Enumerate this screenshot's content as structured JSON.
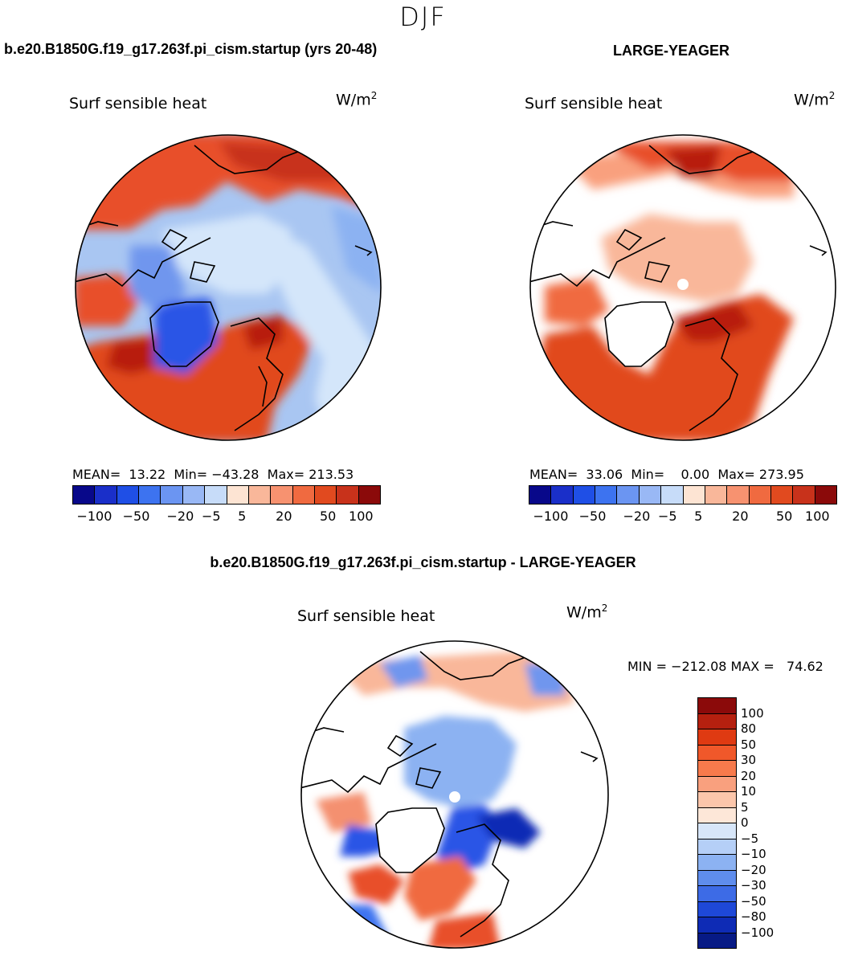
{
  "season": "DJF",
  "panels": {
    "model": {
      "case_title": "b.e20.B1850G.f19_g17.263f.pi_cism.startup (yrs 20-48)",
      "variable": "Surf sensible heat",
      "units_base": "W/m",
      "units_exp": "2",
      "stats": "MEAN=  13.22  Min= −43.28  Max= 213.53"
    },
    "obs": {
      "case_title": "LARGE-YEAGER",
      "variable": "Surf sensible heat",
      "units_base": "W/m",
      "units_exp": "2",
      "stats": "MEAN=  33.06  Min=    0.00  Max= 273.95"
    },
    "diff": {
      "case_title": "b.e20.B1850G.f19_g17.263f.pi_cism.startup - LARGE-YEAGER",
      "variable": "Surf sensible heat",
      "units_base": "W/m",
      "units_exp": "2",
      "stats": "MIN = −212.08 MAX =   74.62"
    }
  },
  "colorbar_main": {
    "colors": [
      "#08088a",
      "#1a2fc9",
      "#1f4fe6",
      "#3d73f0",
      "#6b95f2",
      "#99b8f5",
      "#c7dcf9",
      "#fde4d3",
      "#f9b79a",
      "#f79270",
      "#f06a40",
      "#e14a1f",
      "#c8321b",
      "#8b0a0a"
    ],
    "labels": [
      "−100",
      "−50",
      "−20",
      "−5",
      "5",
      "20",
      "50",
      "100"
    ]
  },
  "colorbar_diff": {
    "colors": [
      "#8b0a0a",
      "#b5200f",
      "#df3a12",
      "#f0582a",
      "#f77a4c",
      "#f9a07e",
      "#fbc6ab",
      "#fde7d8",
      "#d7e6f9",
      "#b5cff7",
      "#8cb2f2",
      "#5f8ded",
      "#3d6be6",
      "#1e48d8",
      "#0e2bb5",
      "#071a85"
    ],
    "labels": [
      "100",
      "80",
      "50",
      "30",
      "20",
      "10",
      "5",
      "0",
      "−5",
      "−10",
      "−20",
      "−30",
      "−50",
      "−80",
      "−100"
    ]
  },
  "colors": {
    "ice_blue": "#d4e6fa",
    "light_blue": "#a9c6f2",
    "mid_blue": "#6f96ee",
    "deep_blue": "#2a55e6",
    "light_red": "#f5b096",
    "red": "#e8502a",
    "dark_red": "#b81d10",
    "pale": "#fde4d3"
  }
}
